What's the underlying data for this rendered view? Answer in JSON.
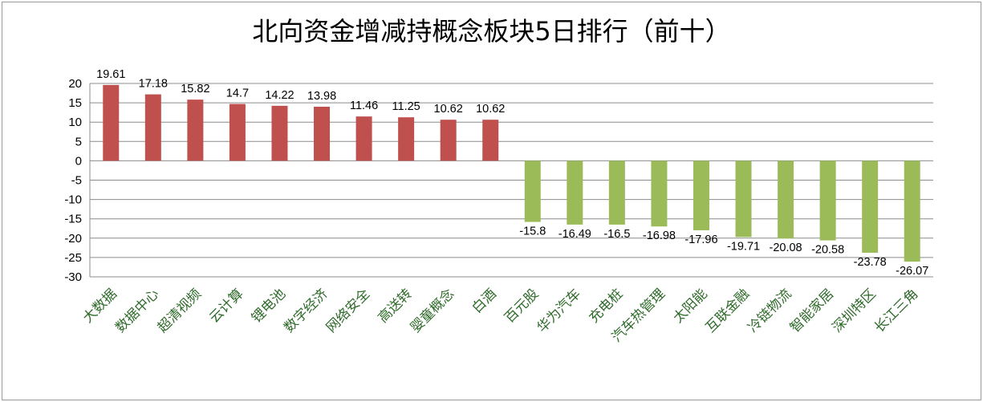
{
  "chart_data": {
    "type": "bar",
    "title": "北向资金增减持概念板块5日排行（前十）",
    "xlabel": "",
    "ylabel": "",
    "ylim": [
      -30,
      20
    ],
    "yticks": [
      20,
      15,
      10,
      5,
      0,
      -5,
      -10,
      -15,
      -20,
      -25,
      -30
    ],
    "grid": true,
    "legend": "none",
    "colors": {
      "positive": "#c0504d",
      "negative": "#9bbb59",
      "category_text": "#2f6b2a"
    },
    "categories": [
      "大数据",
      "数据中心",
      "超清视频",
      "云计算",
      "锂电池",
      "数字经济",
      "网络安全",
      "高送转",
      "婴童概念",
      "白酒",
      "百元股",
      "华为汽车",
      "充电桩",
      "汽车热管理",
      "太阳能",
      "互联金融",
      "冷链物流",
      "智能家居",
      "深圳特区",
      "长江三角"
    ],
    "values": [
      19.61,
      17.18,
      15.82,
      14.7,
      14.22,
      13.98,
      11.46,
      11.25,
      10.62,
      10.62,
      -15.8,
      -16.49,
      -16.5,
      -16.98,
      -17.96,
      -19.71,
      -20.08,
      -20.58,
      -23.78,
      -26.07
    ]
  }
}
